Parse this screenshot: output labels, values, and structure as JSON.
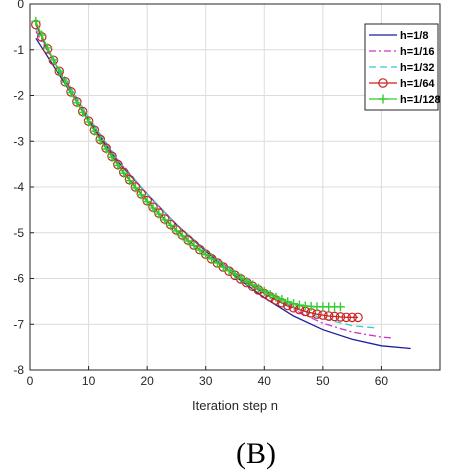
{
  "chart_data": {
    "type": "line",
    "title": "",
    "xlabel": "Iteration step n",
    "ylabel": "",
    "xlim": [
      0,
      70
    ],
    "ylim": [
      -8,
      0
    ],
    "xticks": [
      0,
      10,
      20,
      30,
      40,
      50,
      60
    ],
    "yticks": [
      0,
      -1,
      -2,
      -3,
      -4,
      -5,
      -6,
      -7,
      -8
    ],
    "grid": true,
    "legend_position": "top-right",
    "series": [
      {
        "name": "h=1/8",
        "color": "#1f1f9c",
        "style": "solid",
        "marker": "none",
        "x": [
          1,
          5,
          10,
          15,
          20,
          25,
          30,
          35,
          40,
          45,
          50,
          55,
          60,
          65
        ],
        "y": [
          -0.75,
          -1.55,
          -2.55,
          -3.45,
          -4.15,
          -4.82,
          -5.4,
          -5.95,
          -6.42,
          -6.82,
          -7.12,
          -7.33,
          -7.47,
          -7.53
        ]
      },
      {
        "name": "h=1/16",
        "color": "#cc33cc",
        "style": "dashdot",
        "marker": "none",
        "x": [
          1,
          5,
          10,
          15,
          20,
          25,
          30,
          35,
          40,
          45,
          50,
          55,
          60,
          62
        ],
        "y": [
          -0.6,
          -1.45,
          -2.5,
          -3.42,
          -4.15,
          -4.82,
          -5.38,
          -5.88,
          -6.32,
          -6.68,
          -6.98,
          -7.17,
          -7.28,
          -7.3
        ]
      },
      {
        "name": "h=1/32",
        "color": "#33cccc",
        "style": "dashed",
        "marker": "none",
        "x": [
          1,
          5,
          10,
          15,
          20,
          25,
          30,
          35,
          40,
          45,
          50,
          55,
          59
        ],
        "y": [
          -0.55,
          -1.4,
          -2.48,
          -3.4,
          -4.15,
          -4.82,
          -5.37,
          -5.85,
          -6.28,
          -6.62,
          -6.88,
          -7.03,
          -7.08
        ]
      },
      {
        "name": "h=1/64",
        "color": "#cc2222",
        "style": "solid",
        "marker": "circle",
        "x": [
          1,
          2,
          3,
          4,
          5,
          6,
          7,
          8,
          9,
          10,
          11,
          12,
          13,
          14,
          15,
          16,
          17,
          18,
          19,
          20,
          21,
          22,
          23,
          24,
          25,
          26,
          27,
          28,
          29,
          30,
          31,
          32,
          33,
          34,
          35,
          36,
          37,
          38,
          39,
          40,
          41,
          42,
          43,
          44,
          45,
          46,
          47,
          48,
          49,
          50,
          51,
          52,
          53,
          54,
          55,
          56
        ],
        "y": [
          -0.45,
          -0.72,
          -0.98,
          -1.23,
          -1.47,
          -1.7,
          -1.92,
          -2.14,
          -2.35,
          -2.56,
          -2.76,
          -2.96,
          -3.15,
          -3.33,
          -3.51,
          -3.68,
          -3.84,
          -4.0,
          -4.15,
          -4.3,
          -4.44,
          -4.57,
          -4.7,
          -4.82,
          -4.94,
          -5.05,
          -5.16,
          -5.27,
          -5.37,
          -5.47,
          -5.57,
          -5.66,
          -5.75,
          -5.84,
          -5.93,
          -6.01,
          -6.09,
          -6.17,
          -6.25,
          -6.33,
          -6.4,
          -6.47,
          -6.53,
          -6.59,
          -6.64,
          -6.68,
          -6.72,
          -6.75,
          -6.78,
          -6.8,
          -6.82,
          -6.83,
          -6.84,
          -6.85,
          -6.85,
          -6.85
        ]
      },
      {
        "name": "h=1/128",
        "color": "#33cc33",
        "style": "solid",
        "marker": "plus",
        "x": [
          1,
          2,
          3,
          4,
          5,
          6,
          7,
          8,
          9,
          10,
          11,
          12,
          13,
          14,
          15,
          16,
          17,
          18,
          19,
          20,
          21,
          22,
          23,
          24,
          25,
          26,
          27,
          28,
          29,
          30,
          31,
          32,
          33,
          34,
          35,
          36,
          37,
          38,
          39,
          40,
          41,
          42,
          43,
          44,
          45,
          46,
          47,
          48,
          49,
          50,
          51,
          52,
          53
        ],
        "y": [
          -0.38,
          -0.68,
          -0.96,
          -1.22,
          -1.47,
          -1.71,
          -1.94,
          -2.16,
          -2.37,
          -2.58,
          -2.78,
          -2.98,
          -3.17,
          -3.35,
          -3.53,
          -3.7,
          -3.86,
          -4.02,
          -4.17,
          -4.32,
          -4.46,
          -4.59,
          -4.72,
          -4.84,
          -4.96,
          -5.07,
          -5.18,
          -5.28,
          -5.38,
          -5.48,
          -5.57,
          -5.66,
          -5.75,
          -5.83,
          -5.91,
          -5.99,
          -6.07,
          -6.14,
          -6.21,
          -6.28,
          -6.35,
          -6.41,
          -6.46,
          -6.51,
          -6.55,
          -6.58,
          -6.6,
          -6.61,
          -6.62,
          -6.62,
          -6.62,
          -6.62,
          -6.62
        ]
      }
    ]
  },
  "panel_label": "(B)"
}
